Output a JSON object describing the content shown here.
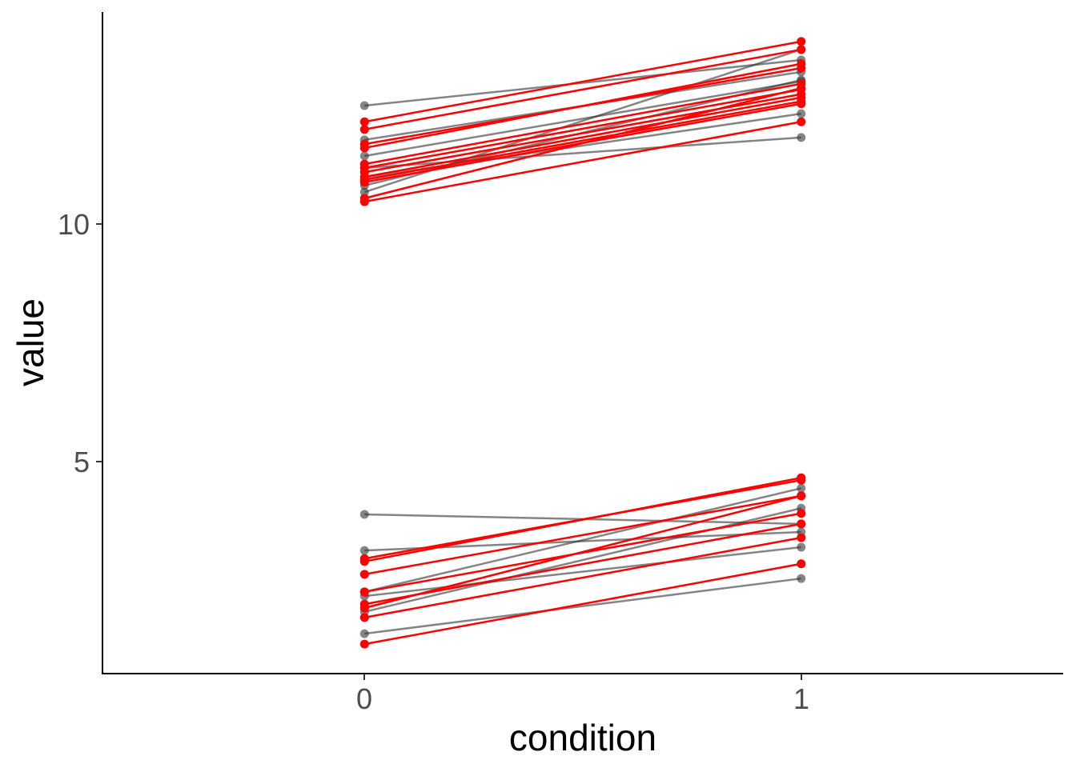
{
  "chart_data": {
    "type": "line",
    "title": "",
    "xlabel": "condition",
    "ylabel": "value",
    "xlim": [
      -0.6,
      1.6
    ],
    "ylim": [
      0.54,
      14.46
    ],
    "x_ticks": [
      "0",
      "1"
    ],
    "y_ticks": [
      "5",
      "10"
    ],
    "grid": false,
    "colors": {
      "gray": "#333333",
      "red": "#ff0000"
    },
    "series": [
      {
        "group": "gray",
        "values": [
          12.49,
          13.45
        ]
      },
      {
        "group": "gray",
        "values": [
          11.77,
          13.2
        ]
      },
      {
        "group": "gray",
        "values": [
          11.43,
          13.0
        ]
      },
      {
        "group": "gray",
        "values": [
          10.67,
          13.67
        ]
      },
      {
        "group": "gray",
        "values": [
          10.81,
          13.03
        ]
      },
      {
        "group": "gray",
        "values": [
          11.18,
          11.82
        ]
      },
      {
        "group": "gray",
        "values": [
          10.98,
          12.32
        ]
      },
      {
        "group": "gray",
        "values": [
          3.89,
          3.69
        ]
      },
      {
        "group": "gray",
        "values": [
          3.13,
          3.52
        ]
      },
      {
        "group": "gray",
        "values": [
          2.26,
          4.44
        ]
      },
      {
        "group": "gray",
        "values": [
          1.84,
          4.02
        ]
      },
      {
        "group": "gray",
        "values": [
          1.38,
          2.54
        ]
      },
      {
        "group": "gray",
        "values": [
          2.17,
          3.2
        ]
      },
      {
        "group": "red",
        "values": [
          12.15,
          13.84
        ]
      },
      {
        "group": "red",
        "values": [
          11.99,
          13.67
        ]
      },
      {
        "group": "red",
        "values": [
          11.68,
          13.28
        ]
      },
      {
        "group": "red",
        "values": [
          11.6,
          13.37
        ]
      },
      {
        "group": "red",
        "values": [
          11.26,
          12.95
        ]
      },
      {
        "group": "red",
        "values": [
          11.18,
          12.83
        ]
      },
      {
        "group": "red",
        "values": [
          11.09,
          12.73
        ]
      },
      {
        "group": "red",
        "values": [
          10.99,
          12.66
        ]
      },
      {
        "group": "red",
        "values": [
          10.93,
          12.58
        ]
      },
      {
        "group": "red",
        "values": [
          10.88,
          12.53
        ]
      },
      {
        "group": "red",
        "values": [
          10.47,
          12.15
        ]
      },
      {
        "group": "red",
        "values": [
          10.54,
          12.86
        ]
      },
      {
        "group": "red",
        "values": [
          2.96,
          4.61
        ]
      },
      {
        "group": "red",
        "values": [
          2.9,
          4.66
        ]
      },
      {
        "group": "red",
        "values": [
          2.63,
          4.28
        ]
      },
      {
        "group": "red",
        "values": [
          2.26,
          3.91
        ]
      },
      {
        "group": "red",
        "values": [
          2.0,
          3.69
        ]
      },
      {
        "group": "red",
        "values": [
          1.72,
          3.4
        ]
      },
      {
        "group": "red",
        "values": [
          1.16,
          2.85
        ]
      },
      {
        "group": "red",
        "values": [
          1.92,
          4.28
        ]
      }
    ]
  }
}
